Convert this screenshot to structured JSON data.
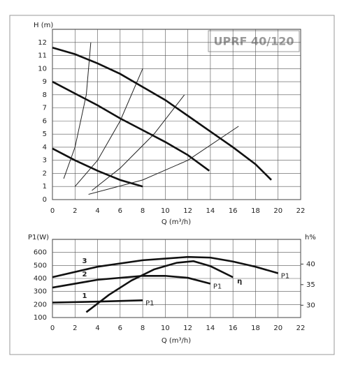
{
  "chart_data": [
    {
      "type": "line",
      "title": "UPRF 40/120",
      "ylabel": "H (m)",
      "xlabel": "Q (m³/h)",
      "xlim": [
        0,
        22
      ],
      "xticks": [
        0,
        2,
        4,
        6,
        8,
        10,
        12,
        14,
        16,
        18,
        20,
        22
      ],
      "ylim": [
        0,
        13
      ],
      "yticks": [
        0,
        1,
        2,
        3,
        4,
        5,
        6,
        7,
        8,
        9,
        10,
        11,
        12
      ],
      "grid": true,
      "series": [
        {
          "color": "#111111",
          "linewidth": 2.6,
          "x": [
            0,
            2,
            4,
            6,
            8,
            10,
            12,
            14,
            16,
            18,
            19.4
          ],
          "values": [
            11.6,
            11.1,
            10.4,
            9.6,
            8.6,
            7.6,
            6.4,
            5.2,
            4.0,
            2.7,
            1.5
          ]
        },
        {
          "color": "#111111",
          "linewidth": 2.6,
          "x": [
            0,
            2,
            4,
            6,
            8,
            10,
            12,
            13.9
          ],
          "values": [
            9.0,
            8.1,
            7.2,
            6.2,
            5.3,
            4.4,
            3.4,
            2.2
          ]
        },
        {
          "color": "#111111",
          "linewidth": 2.6,
          "x": [
            0,
            2,
            4,
            6,
            8
          ],
          "values": [
            3.9,
            3.0,
            2.2,
            1.5,
            1.0
          ]
        },
        {
          "color": "#222222",
          "linewidth": 1,
          "x": [
            1,
            2,
            3,
            3.4
          ],
          "values": [
            1.6,
            4.0,
            8.0,
            12.0
          ]
        },
        {
          "color": "#222222",
          "linewidth": 1,
          "x": [
            2,
            4,
            6,
            8
          ],
          "values": [
            1.0,
            3.0,
            6.0,
            10.0
          ]
        },
        {
          "color": "#222222",
          "linewidth": 1,
          "x": [
            3.5,
            6,
            9,
            11.7
          ],
          "values": [
            0.7,
            2.4,
            5.0,
            8.0
          ]
        },
        {
          "color": "#222222",
          "linewidth": 1,
          "x": [
            3.2,
            8,
            12,
            16.5
          ],
          "values": [
            0.4,
            1.5,
            3.0,
            5.6
          ]
        }
      ]
    },
    {
      "type": "line",
      "ylabel": "P1(W)",
      "y2label": "h%",
      "xlabel": "Q (m³/h)",
      "xlim": [
        0,
        22
      ],
      "xticks": [
        0,
        2,
        4,
        6,
        8,
        10,
        12,
        14,
        16,
        18,
        20,
        22
      ],
      "ylim": [
        100,
        700
      ],
      "yticks": [
        100,
        200,
        300,
        400,
        500,
        600
      ],
      "y2lim": [
        27,
        46
      ],
      "y2ticks": [
        30,
        35,
        40
      ],
      "grid": true,
      "series": [
        {
          "name": "3",
          "end_label": "P1",
          "color": "#111111",
          "linewidth": 2.6,
          "x": [
            0,
            4,
            8,
            12,
            14,
            16,
            18,
            20
          ],
          "values": [
            410,
            490,
            540,
            565,
            560,
            530,
            490,
            440
          ]
        },
        {
          "name": "2",
          "end_label": "P1",
          "color": "#111111",
          "linewidth": 2.6,
          "x": [
            0,
            4,
            8,
            10,
            12,
            14
          ],
          "values": [
            330,
            390,
            420,
            420,
            405,
            360
          ]
        },
        {
          "name": "1",
          "end_label": "P1",
          "color": "#111111",
          "linewidth": 2.6,
          "x": [
            0,
            4,
            8
          ],
          "values": [
            215,
            222,
            232
          ]
        },
        {
          "name": "η",
          "axis": "y2",
          "color": "#111111",
          "linewidth": 2.6,
          "x": [
            3,
            5,
            7,
            9,
            11,
            12.5,
            14,
            16
          ],
          "values": [
            28.3,
            32.5,
            36.0,
            38.7,
            40.3,
            40.7,
            39.5,
            36.8
          ]
        }
      ]
    }
  ]
}
